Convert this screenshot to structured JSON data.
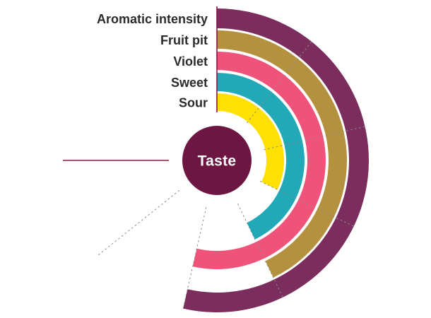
{
  "page": {
    "background": "#ffffff"
  },
  "chart_data": {
    "type": "radial-bar",
    "title": "",
    "center_label": "Taste",
    "center_color": "#6e1642",
    "center_text_color": "#ffffff",
    "label_color": "#2b2b2b",
    "scale": {
      "min": 0,
      "max": 7,
      "start_angle_deg": 0,
      "sweep_deg": 270,
      "direction": "clockwise"
    },
    "rings": [
      {
        "label": "Aromatic intensity",
        "value": 5,
        "color": "#7b2e5e"
      },
      {
        "label": "Fruit pit",
        "value": 4,
        "color": "#b3913e"
      },
      {
        "label": "Violet",
        "value": 5,
        "color": "#f0537a"
      },
      {
        "label": "Sweet",
        "value": 4,
        "color": "#21a9b8"
      },
      {
        "label": "Sour",
        "value": 3,
        "color": "#ffe000"
      }
    ],
    "gridlines": {
      "values": [
        1,
        2,
        3,
        4,
        5,
        6
      ],
      "style": "dashed",
      "color": "#8a8a8a"
    },
    "axis_lines": {
      "values": [
        0,
        7
      ],
      "style": "solid",
      "color": "#8d1348"
    },
    "legend_position": "left-of-start",
    "grid": true
  }
}
